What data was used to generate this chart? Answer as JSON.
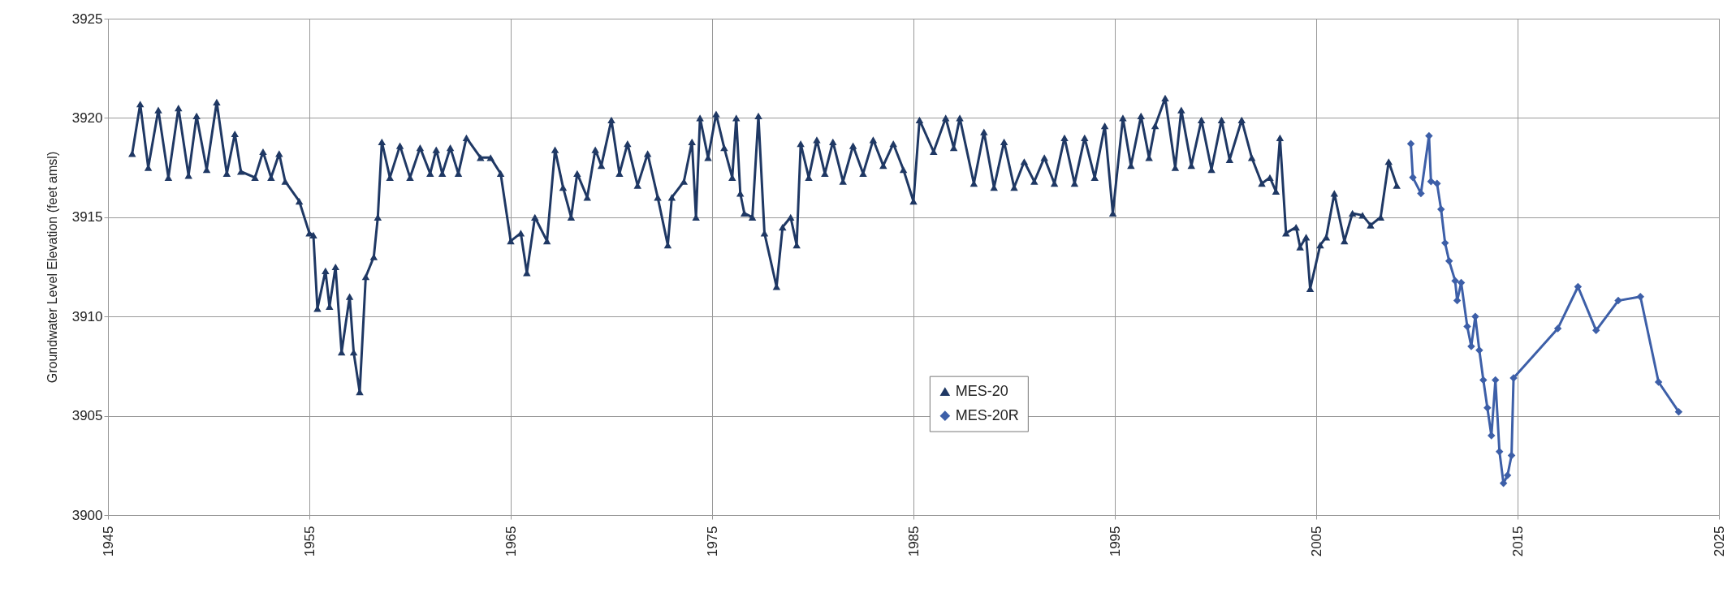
{
  "chart_data": {
    "type": "line",
    "ylabel": "Groundwater Level Elevation (feet amsl)",
    "xlim": [
      1945,
      2025
    ],
    "xticks": [
      1945,
      1955,
      1965,
      1975,
      1985,
      1995,
      2005,
      2015,
      2025
    ],
    "ylim": [
      3900,
      3925
    ],
    "yticks": [
      3900,
      3905,
      3910,
      3915,
      3920,
      3925
    ],
    "grid": true,
    "legend": "bottom",
    "series": [
      {
        "name": "MES-20",
        "color": "#1f3864",
        "marker": "triangle",
        "x": [
          1946.2,
          1946.6,
          1947.0,
          1947.5,
          1948.0,
          1948.5,
          1949.0,
          1949.4,
          1949.9,
          1950.4,
          1950.9,
          1951.3,
          1951.6,
          1952.3,
          1952.7,
          1953.1,
          1953.5,
          1953.8,
          1954.5,
          1955.0,
          1955.2,
          1955.4,
          1955.8,
          1956.0,
          1956.3,
          1956.6,
          1957.0,
          1957.2,
          1957.5,
          1957.8,
          1958.2,
          1958.4,
          1958.6,
          1959.0,
          1959.5,
          1960.0,
          1960.5,
          1961.0,
          1961.3,
          1961.6,
          1962.0,
          1962.4,
          1962.8,
          1963.5,
          1964.0,
          1964.5,
          1965.0,
          1965.5,
          1965.8,
          1966.2,
          1966.8,
          1967.2,
          1967.6,
          1968.0,
          1968.3,
          1968.8,
          1969.2,
          1969.5,
          1970.0,
          1970.4,
          1970.8,
          1971.3,
          1971.8,
          1972.3,
          1972.8,
          1973.0,
          1973.6,
          1974.0,
          1974.2,
          1974.4,
          1974.8,
          1975.2,
          1975.6,
          1976.0,
          1976.2,
          1976.4,
          1976.6,
          1977.0,
          1977.3,
          1977.6,
          1978.2,
          1978.5,
          1978.9,
          1979.2,
          1979.4,
          1979.8,
          1980.2,
          1980.6,
          1981.0,
          1981.5,
          1982.0,
          1982.5,
          1983.0,
          1983.5,
          1984.0,
          1984.5,
          1985.0,
          1985.3,
          1986.0,
          1986.6,
          1987.0,
          1987.3,
          1988.0,
          1988.5,
          1989.0,
          1989.5,
          1990.0,
          1990.5,
          1991.0,
          1991.5,
          1992.0,
          1992.5,
          1993.0,
          1993.5,
          1994.0,
          1994.5,
          1994.9,
          1995.4,
          1995.8,
          1996.3,
          1996.7,
          1997.0,
          1997.5,
          1998.0,
          1998.3,
          1998.8,
          1999.3,
          1999.8,
          2000.3,
          2000.7,
          2001.3,
          2001.8,
          2002.3,
          2002.7,
          2003.0,
          2003.2,
          2003.5,
          2004.0,
          2004.2,
          2004.5,
          2004.7,
          2005.2,
          2005.5,
          2005.9,
          2006.4,
          2006.8,
          2007.3,
          2007.7,
          2008.2,
          2008.6,
          2009.0
        ],
        "values": [
          3918.2,
          3920.7,
          3917.5,
          3920.4,
          3917.0,
          3920.5,
          3917.1,
          3920.1,
          3917.4,
          3920.8,
          3917.2,
          3919.2,
          3917.3,
          3917.0,
          3918.3,
          3917.0,
          3918.2,
          3916.8,
          3915.8,
          3914.2,
          3914.1,
          3910.4,
          3912.3,
          3910.5,
          3912.5,
          3908.2,
          3911.0,
          3908.2,
          3906.2,
          3912.0,
          3913.0,
          3915.0,
          3918.8,
          3917.0,
          3918.6,
          3917.0,
          3918.5,
          3917.2,
          3918.4,
          3917.2,
          3918.5,
          3917.2,
          3919.0,
          3918.0,
          3918.0,
          3917.2,
          3913.8,
          3914.2,
          3912.2,
          3915.0,
          3913.8,
          3918.4,
          3916.5,
          3915.0,
          3917.2,
          3916.0,
          3918.4,
          3917.6,
          3919.9,
          3917.2,
          3918.7,
          3916.6,
          3918.2,
          3916.0,
          3913.6,
          3916.0,
          3916.8,
          3918.8,
          3915.0,
          3920.0,
          3918.0,
          3920.2,
          3918.5,
          3917.0,
          3920.0,
          3916.2,
          3915.2,
          3915.0,
          3920.1,
          3914.2,
          3911.5,
          3914.5,
          3915.0,
          3913.6,
          3918.7,
          3917.0,
          3918.9,
          3917.2,
          3918.8,
          3916.8,
          3918.6,
          3917.2,
          3918.9,
          3917.6,
          3918.7,
          3917.4,
          3915.8,
          3919.9,
          3918.3,
          3920.0,
          3918.5,
          3920.0,
          3916.7,
          3919.3,
          3916.5,
          3918.8,
          3916.5,
          3917.8,
          3916.8,
          3918.0,
          3916.7,
          3919.0,
          3916.7,
          3919.0,
          3917.0,
          3919.6,
          3915.2,
          3920.0,
          3917.6,
          3920.1,
          3918.0,
          3919.6,
          3921.0,
          3917.5,
          3920.4,
          3917.6,
          3919.9,
          3917.4,
          3919.9,
          3917.9,
          3919.9,
          3918.0,
          3916.7,
          3917.0,
          3916.3,
          3919.0,
          3914.2,
          3914.5,
          3913.5,
          3914.0,
          3911.4,
          3913.6,
          3914.0,
          3916.2,
          3913.8,
          3915.2,
          3915.1,
          3914.6,
          3915.0,
          3917.8,
          3916.6
        ]
      },
      {
        "name": "MES-20R",
        "color": "#3d5fa8",
        "marker": "diamond",
        "x": [
          2009.7,
          2009.8,
          2010.2,
          2010.6,
          2010.7,
          2011.0,
          2011.2,
          2011.4,
          2011.6,
          2011.9,
          2012.0,
          2012.2,
          2012.5,
          2012.7,
          2012.9,
          2013.1,
          2013.3,
          2013.5,
          2013.7,
          2013.9,
          2014.1,
          2014.3,
          2014.5,
          2014.7,
          2014.8,
          2017.0,
          2018.0,
          2018.9,
          2020.0,
          2021.1,
          2022.0,
          2023.0
        ],
        "values": [
          3918.7,
          3917.0,
          3916.2,
          3919.1,
          3916.8,
          3916.7,
          3915.4,
          3913.7,
          3912.8,
          3911.8,
          3910.8,
          3911.7,
          3909.5,
          3908.5,
          3910.0,
          3908.3,
          3906.8,
          3905.4,
          3904.0,
          3906.8,
          3903.2,
          3901.6,
          3902.0,
          3903.0,
          3906.9,
          3909.4,
          3911.5,
          3909.3,
          3910.8,
          3911.0,
          3906.7,
          3905.2
        ]
      }
    ]
  }
}
